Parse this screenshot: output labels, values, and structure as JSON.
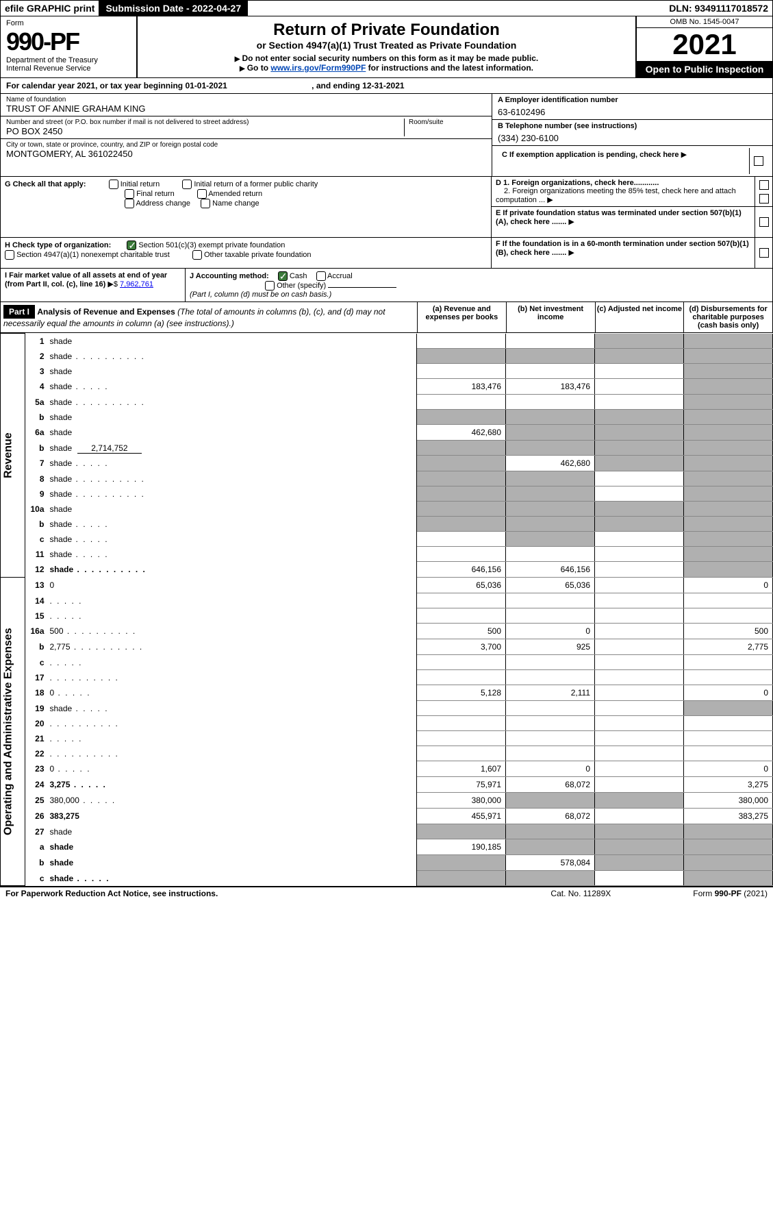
{
  "topbar": {
    "efile": "efile GRAPHIC print",
    "subdate_lbl": "Submission Date - 2022-04-27",
    "dln": "DLN: 93491117018572"
  },
  "header": {
    "form": "Form",
    "num": "990-PF",
    "dept": "Department of the Treasury",
    "irs": "Internal Revenue Service",
    "title": "Return of Private Foundation",
    "subtitle": "or Section 4947(a)(1) Trust Treated as Private Foundation",
    "note1": "Do not enter social security numbers on this form as it may be made public.",
    "note2_pre": "Go to ",
    "note2_link": "www.irs.gov/Form990PF",
    "note2_post": " for instructions and the latest information.",
    "omb": "OMB No. 1545-0047",
    "year": "2021",
    "inspection": "Open to Public Inspection"
  },
  "calrow": {
    "text_a": "For calendar year 2021, or tax year beginning 01-01-2021",
    "text_b": ", and ending 12-31-2021"
  },
  "info": {
    "name_lbl": "Name of foundation",
    "name": "TRUST OF ANNIE GRAHAM KING",
    "addr_lbl": "Number and street (or P.O. box number if mail is not delivered to street address)",
    "addr": "PO BOX 2450",
    "room_lbl": "Room/suite",
    "city_lbl": "City or town, state or province, country, and ZIP or foreign postal code",
    "city": "MONTGOMERY, AL  361022450",
    "a_lbl": "A Employer identification number",
    "a": "63-6102496",
    "b_lbl": "B Telephone number (see instructions)",
    "b": "(334) 230-6100",
    "c": "C If exemption application is pending, check here",
    "d1": "D 1. Foreign organizations, check here............",
    "d2": "2. Foreign organizations meeting the 85% test, check here and attach computation ...",
    "e": "E  If private foundation status was terminated under section 507(b)(1)(A), check here .......",
    "f": "F  If the foundation is in a 60-month termination under section 507(b)(1)(B), check here .......",
    "g": "G Check all that apply:",
    "g_opts": [
      "Initial return",
      "Initial return of a former public charity",
      "Final return",
      "Amended return",
      "Address change",
      "Name change"
    ],
    "h": "H Check type of organization:",
    "h1": "Section 501(c)(3) exempt private foundation",
    "h2": "Section 4947(a)(1) nonexempt charitable trust",
    "h3": "Other taxable private foundation",
    "i": "I Fair market value of all assets at end of year (from Part II, col. (c), line 16)",
    "i_val": "7,962,761",
    "j": "J Accounting method:",
    "j1": "Cash",
    "j2": "Accrual",
    "j3": "Other (specify)",
    "j_note": "(Part I, column (d) must be on cash basis.)"
  },
  "part1": {
    "label": "Part I",
    "title": "Analysis of Revenue and Expenses",
    "title_note": " (The total of amounts in columns (b), (c), and (d) may not necessarily equal the amounts in column (a) (see instructions).)",
    "col_a": "(a)   Revenue and expenses per books",
    "col_b": "(b)   Net investment income",
    "col_c": "(c)   Adjusted net income",
    "col_d": "(d)   Disbursements for charitable purposes (cash basis only)"
  },
  "sections": {
    "rev": "Revenue",
    "exp": "Operating and Administrative Expenses"
  },
  "rows": [
    {
      "n": "1",
      "d": "shade",
      "a": "",
      "b": "",
      "c": "shade"
    },
    {
      "n": "2",
      "d": "shade",
      "dots": true,
      "a": "shade",
      "b": "shade",
      "c": "shade"
    },
    {
      "n": "3",
      "d": "shade",
      "a": "",
      "b": "",
      "c": ""
    },
    {
      "n": "4",
      "d": "shade",
      "dots": "s",
      "a": "183,476",
      "b": "183,476",
      "c": ""
    },
    {
      "n": "5a",
      "d": "shade",
      "dots": true,
      "a": "",
      "b": "",
      "c": ""
    },
    {
      "n": "b",
      "d": "shade",
      "a": "shade",
      "b": "shade",
      "c": "shade"
    },
    {
      "n": "6a",
      "d": "shade",
      "a": "462,680",
      "b": "shade",
      "c": "shade"
    },
    {
      "n": "b",
      "d": "shade",
      "inline": "2,714,752",
      "a": "shade",
      "b": "shade",
      "c": "shade"
    },
    {
      "n": "7",
      "d": "shade",
      "dots": "s",
      "a": "shade",
      "b": "462,680",
      "c": "shade"
    },
    {
      "n": "8",
      "d": "shade",
      "dots": true,
      "a": "shade",
      "b": "shade",
      "c": ""
    },
    {
      "n": "9",
      "d": "shade",
      "dots": true,
      "a": "shade",
      "b": "shade",
      "c": ""
    },
    {
      "n": "10a",
      "d": "shade",
      "a": "shade",
      "b": "shade",
      "c": "shade"
    },
    {
      "n": "b",
      "d": "shade",
      "dots": "s",
      "a": "shade",
      "b": "shade",
      "c": "shade"
    },
    {
      "n": "c",
      "d": "shade",
      "dots": "s",
      "a": "",
      "b": "shade",
      "c": ""
    },
    {
      "n": "11",
      "d": "shade",
      "dots": "s",
      "a": "",
      "b": "",
      "c": ""
    },
    {
      "n": "12",
      "d": "shade",
      "dots": true,
      "bold": true,
      "a": "646,156",
      "b": "646,156",
      "c": ""
    },
    {
      "n": "13",
      "d": "0",
      "a": "65,036",
      "b": "65,036",
      "c": ""
    },
    {
      "n": "14",
      "d": "",
      "dots": "s",
      "a": "",
      "b": "",
      "c": ""
    },
    {
      "n": "15",
      "d": "",
      "dots": "s",
      "a": "",
      "b": "",
      "c": ""
    },
    {
      "n": "16a",
      "d": "500",
      "dots": true,
      "a": "500",
      "b": "0",
      "c": ""
    },
    {
      "n": "b",
      "d": "2,775",
      "dots": true,
      "a": "3,700",
      "b": "925",
      "c": ""
    },
    {
      "n": "c",
      "d": "",
      "dots": "s",
      "a": "",
      "b": "",
      "c": ""
    },
    {
      "n": "17",
      "d": "",
      "dots": true,
      "a": "",
      "b": "",
      "c": ""
    },
    {
      "n": "18",
      "d": "0",
      "dots": "s",
      "a": "5,128",
      "b": "2,111",
      "c": ""
    },
    {
      "n": "19",
      "d": "shade",
      "dots": "s",
      "a": "",
      "b": "",
      "c": ""
    },
    {
      "n": "20",
      "d": "",
      "dots": true,
      "a": "",
      "b": "",
      "c": ""
    },
    {
      "n": "21",
      "d": "",
      "dots": "s",
      "a": "",
      "b": "",
      "c": ""
    },
    {
      "n": "22",
      "d": "",
      "dots": true,
      "a": "",
      "b": "",
      "c": ""
    },
    {
      "n": "23",
      "d": "0",
      "dots": "s",
      "a": "1,607",
      "b": "0",
      "c": ""
    },
    {
      "n": "24",
      "d": "3,275",
      "dots": "s",
      "bold": true,
      "a": "75,971",
      "b": "68,072",
      "c": ""
    },
    {
      "n": "25",
      "d": "380,000",
      "dots": "s",
      "a": "380,000",
      "b": "shade",
      "c": "shade"
    },
    {
      "n": "26",
      "d": "383,275",
      "bold": true,
      "a": "455,971",
      "b": "68,072",
      "c": ""
    },
    {
      "n": "27",
      "d": "shade",
      "a": "shade",
      "b": "shade",
      "c": "shade"
    },
    {
      "n": "a",
      "d": "shade",
      "bold": true,
      "a": "190,185",
      "b": "shade",
      "c": "shade"
    },
    {
      "n": "b",
      "d": "shade",
      "bold": true,
      "a": "shade",
      "b": "578,084",
      "c": "shade"
    },
    {
      "n": "c",
      "d": "shade",
      "dots": "s",
      "bold": true,
      "a": "shade",
      "b": "shade",
      "c": ""
    }
  ],
  "footer": {
    "left": "For Paperwork Reduction Act Notice, see instructions.",
    "mid": "Cat. No. 11289X",
    "right": "Form 990-PF (2021)"
  }
}
